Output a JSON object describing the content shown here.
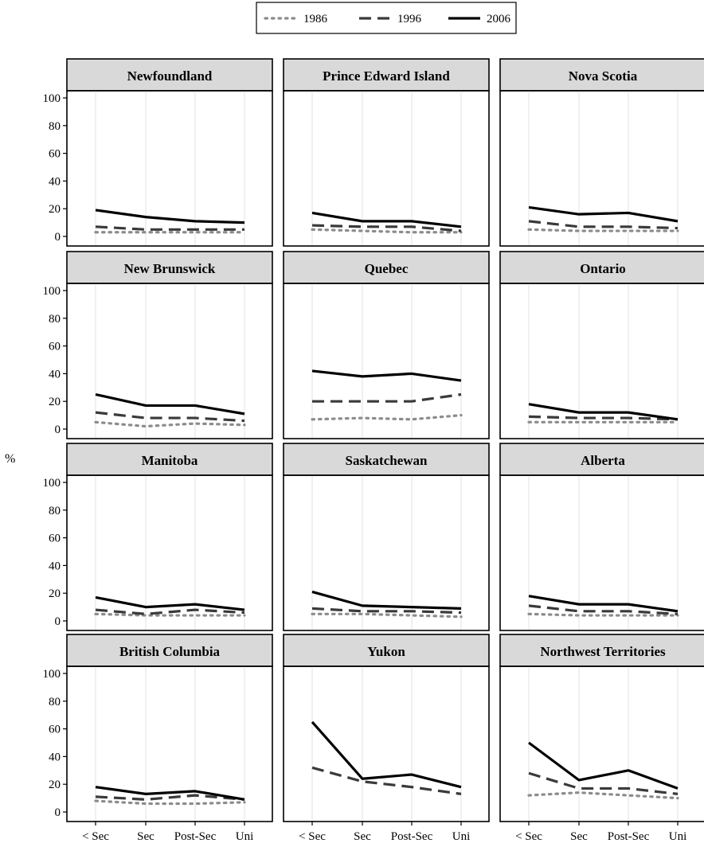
{
  "chart_data": {
    "type": "line",
    "title": "",
    "xlabel": "",
    "ylabel": "%",
    "categories": [
      "< Sec",
      "Sec",
      "Post-Sec",
      "Uni"
    ],
    "ylim": [
      0,
      100
    ],
    "yticks": [
      0,
      20,
      40,
      60,
      80,
      100
    ],
    "grid": "vertical",
    "legend_position": "top-center",
    "legend": [
      {
        "name": "1986",
        "style": "dotted",
        "color": "#8c8c8c"
      },
      {
        "name": "1996",
        "style": "dashed",
        "color": "#3a3a3a"
      },
      {
        "name": "2006",
        "style": "solid",
        "color": "#000000"
      }
    ],
    "panels": [
      {
        "title": "Newfoundland",
        "series": [
          {
            "name": "1986",
            "values": [
              3,
              3,
              3,
              3
            ]
          },
          {
            "name": "1996",
            "values": [
              7,
              5,
              5,
              5
            ]
          },
          {
            "name": "2006",
            "values": [
              19,
              14,
              11,
              10
            ]
          }
        ]
      },
      {
        "title": "Prince Edward Island",
        "series": [
          {
            "name": "1986",
            "values": [
              5,
              4,
              3,
              3
            ]
          },
          {
            "name": "1996",
            "values": [
              8,
              7,
              7,
              4
            ]
          },
          {
            "name": "2006",
            "values": [
              17,
              11,
              11,
              7
            ]
          }
        ]
      },
      {
        "title": "Nova Scotia",
        "series": [
          {
            "name": "1986",
            "values": [
              5,
              4,
              4,
              4
            ]
          },
          {
            "name": "1996",
            "values": [
              11,
              7,
              7,
              6
            ]
          },
          {
            "name": "2006",
            "values": [
              21,
              16,
              17,
              11
            ]
          }
        ]
      },
      {
        "title": "New Brunswick",
        "series": [
          {
            "name": "1986",
            "values": [
              5,
              2,
              4,
              3
            ]
          },
          {
            "name": "1996",
            "values": [
              12,
              8,
              8,
              6
            ]
          },
          {
            "name": "2006",
            "values": [
              25,
              17,
              17,
              11
            ]
          }
        ]
      },
      {
        "title": "Quebec",
        "series": [
          {
            "name": "1986",
            "values": [
              7,
              8,
              7,
              10
            ]
          },
          {
            "name": "1996",
            "values": [
              20,
              20,
              20,
              25
            ]
          },
          {
            "name": "2006",
            "values": [
              42,
              38,
              40,
              35
            ]
          }
        ]
      },
      {
        "title": "Ontario",
        "series": [
          {
            "name": "1986",
            "values": [
              5,
              5,
              5,
              5
            ]
          },
          {
            "name": "1996",
            "values": [
              9,
              8,
              8,
              7
            ]
          },
          {
            "name": "2006",
            "values": [
              18,
              12,
              12,
              7
            ]
          }
        ]
      },
      {
        "title": "Manitoba",
        "series": [
          {
            "name": "1986",
            "values": [
              5,
              4,
              4,
              4
            ]
          },
          {
            "name": "1996",
            "values": [
              8,
              5,
              8,
              6
            ]
          },
          {
            "name": "2006",
            "values": [
              17,
              10,
              12,
              8
            ]
          }
        ]
      },
      {
        "title": "Saskatchewan",
        "series": [
          {
            "name": "1986",
            "values": [
              5,
              5,
              4,
              3
            ]
          },
          {
            "name": "1996",
            "values": [
              9,
              7,
              7,
              6
            ]
          },
          {
            "name": "2006",
            "values": [
              21,
              11,
              10,
              9
            ]
          }
        ]
      },
      {
        "title": "Alberta",
        "series": [
          {
            "name": "1986",
            "values": [
              5,
              4,
              4,
              4
            ]
          },
          {
            "name": "1996",
            "values": [
              11,
              7,
              7,
              5
            ]
          },
          {
            "name": "2006",
            "values": [
              18,
              12,
              12,
              7
            ]
          }
        ]
      },
      {
        "title": "British Columbia",
        "series": [
          {
            "name": "1986",
            "values": [
              8,
              6,
              6,
              7
            ]
          },
          {
            "name": "1996",
            "values": [
              11,
              9,
              12,
              9
            ]
          },
          {
            "name": "2006",
            "values": [
              18,
              13,
              15,
              9
            ]
          }
        ]
      },
      {
        "title": "Yukon",
        "series": [
          {
            "name": "1986",
            "values": []
          },
          {
            "name": "1996",
            "values": [
              32,
              22,
              18,
              13
            ]
          },
          {
            "name": "2006",
            "values": [
              65,
              24,
              27,
              18
            ]
          }
        ]
      },
      {
        "title": "Northwest Territories",
        "series": [
          {
            "name": "1986",
            "values": [
              12,
              14,
              12,
              10
            ]
          },
          {
            "name": "1996",
            "values": [
              28,
              17,
              17,
              13
            ]
          },
          {
            "name": "2006",
            "values": [
              50,
              23,
              30,
              17
            ]
          }
        ]
      }
    ]
  }
}
